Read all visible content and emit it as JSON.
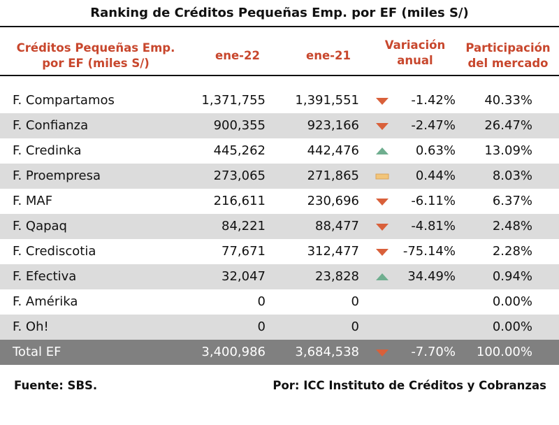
{
  "title": "Ranking de Créditos Pequeñas Emp. por EF (miles S/)",
  "headers": {
    "entity_line1": "Créditos Pequeñas Emp.",
    "entity_line2": "por EF (miles S/)",
    "period1": "ene-22",
    "period2": "ene-21",
    "variation_line1": "Variación",
    "variation_line2": "anual",
    "share_line1": "Participación",
    "share_line2": "del mercado"
  },
  "colors": {
    "header_text": "#c8472d",
    "alt_row": "#dcdcdc",
    "total_row": "#808080",
    "down_arrow": "#d9603a",
    "up_arrow": "#6fae8f",
    "flat_bar": "#f2c57a"
  },
  "rows": [
    {
      "name": "F. Compartamos",
      "v22": "1,371,755",
      "v21": "1,391,551",
      "trend": "down",
      "var": "-1.42%",
      "share": "40.33%"
    },
    {
      "name": "F. Confianza",
      "v22": "900,355",
      "v21": "923,166",
      "trend": "down",
      "var": "-2.47%",
      "share": "26.47%"
    },
    {
      "name": "F. Credinka",
      "v22": "445,262",
      "v21": "442,476",
      "trend": "up",
      "var": "0.63%",
      "share": "13.09%"
    },
    {
      "name": "F. Proempresa",
      "v22": "273,065",
      "v21": "271,865",
      "trend": "flat",
      "var": "0.44%",
      "share": "8.03%"
    },
    {
      "name": "F. MAF",
      "v22": "216,611",
      "v21": "230,696",
      "trend": "down",
      "var": "-6.11%",
      "share": "6.37%"
    },
    {
      "name": "F. Qapaq",
      "v22": "84,221",
      "v21": "88,477",
      "trend": "down",
      "var": "-4.81%",
      "share": "2.48%"
    },
    {
      "name": "F. Crediscotia",
      "v22": "77,671",
      "v21": "312,477",
      "trend": "down",
      "var": "-75.14%",
      "share": "2.28%"
    },
    {
      "name": "F. Efectiva",
      "v22": "32,047",
      "v21": "23,828",
      "trend": "up",
      "var": "34.49%",
      "share": "0.94%"
    },
    {
      "name": "F. Amérika",
      "v22": "0",
      "v21": "0",
      "trend": "none",
      "var": "",
      "share": "0.00%"
    },
    {
      "name": "F. Oh!",
      "v22": "0",
      "v21": "0",
      "trend": "none",
      "var": "",
      "share": "0.00%"
    }
  ],
  "total": {
    "name": "Total EF",
    "v22": "3,400,986",
    "v21": "3,684,538",
    "trend": "down",
    "var": "-7.70%",
    "share": "100.00%"
  },
  "footer": {
    "source": "Fuente: SBS.",
    "credit": "Por: ICC Instituto de Créditos y Cobranzas"
  }
}
